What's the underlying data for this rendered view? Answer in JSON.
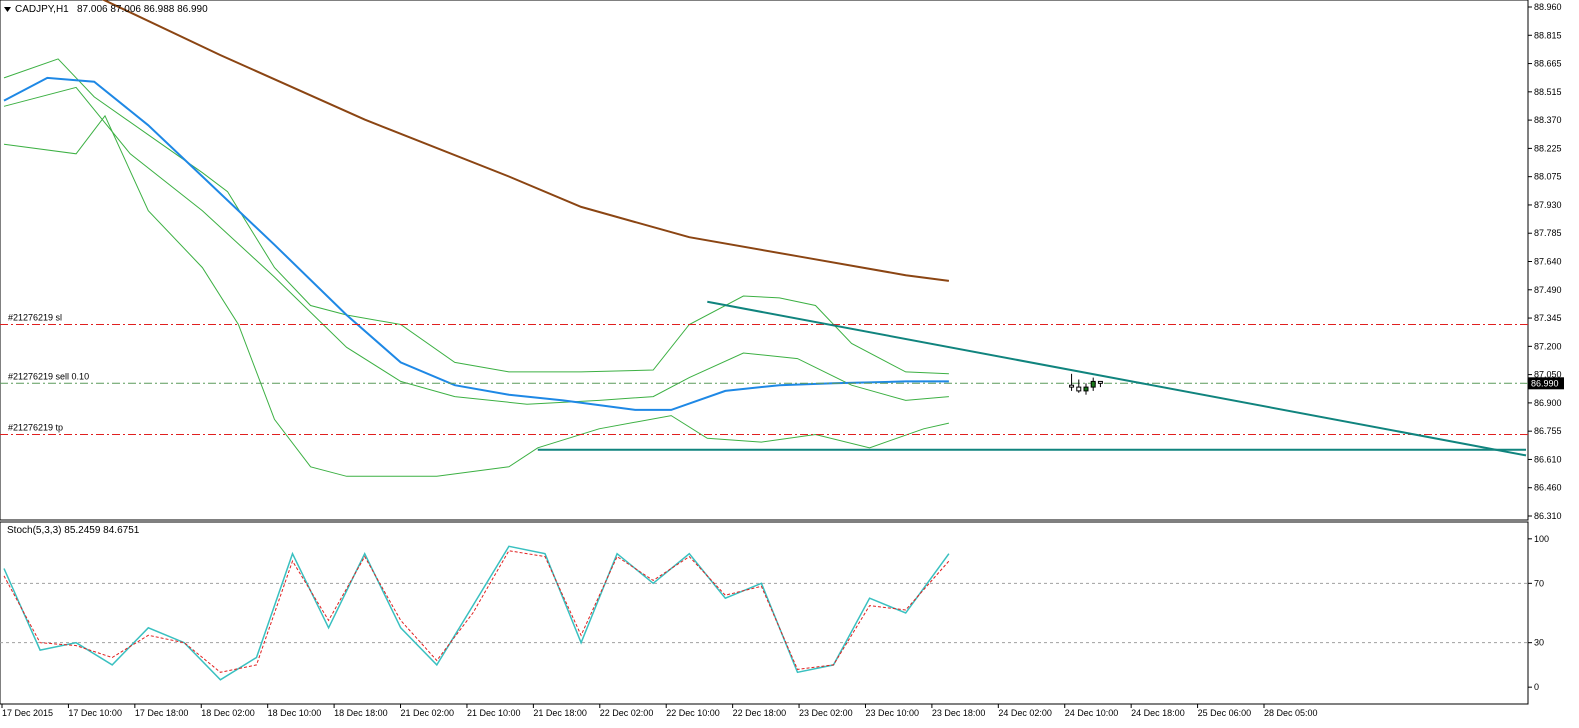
{
  "chart_data": {
    "type": "candlestick",
    "symbol_label": "CADJPY,H1",
    "ohlc_header": "87.006 87.006 86.988 86.990",
    "current_price_label": "86.990",
    "y_ticks": [
      "88.960",
      "88.815",
      "88.665",
      "88.515",
      "88.370",
      "88.225",
      "88.075",
      "87.930",
      "87.785",
      "87.640",
      "87.490",
      "87.345",
      "87.200",
      "87.050",
      "86.900",
      "86.755",
      "86.610",
      "86.460",
      "86.310"
    ],
    "x_ticks": [
      "17 Dec 2015",
      "17 Dec 10:00",
      "17 Dec 18:00",
      "18 Dec 02:00",
      "18 Dec 10:00",
      "18 Dec 18:00",
      "21 Dec 02:00",
      "21 Dec 10:00",
      "21 Dec 18:00",
      "22 Dec 02:00",
      "22 Dec 10:00",
      "22 Dec 18:00",
      "23 Dec 02:00",
      "23 Dec 10:00",
      "23 Dec 18:00",
      "24 Dec 02:00",
      "24 Dec 10:00",
      "24 Dec 18:00",
      "25 Dec 06:00",
      "28 Dec 05:00"
    ],
    "ylim": [
      86.28,
      89.0
    ],
    "levels": [
      {
        "label": "#21276219 sl",
        "price": 87.3,
        "color": "#e02020"
      },
      {
        "label": "#21276219 sell 0.10",
        "price": 86.99,
        "color": "#5a9a5a"
      },
      {
        "label": "#21276219 tp",
        "price": 86.72,
        "color": "#e02020"
      }
    ],
    "trendlines": [
      {
        "name": "descending-trendline",
        "from": [
          195,
          87.42
        ],
        "to": [
          422,
          86.61
        ],
        "color": "#10847e"
      },
      {
        "name": "support-line",
        "from": [
          148,
          86.64
        ],
        "to": [
          422,
          86.64
        ],
        "color": "#10847e"
      }
    ],
    "ma_slow": {
      "color": "#8b4513",
      "points": [
        [
          0,
          89.2
        ],
        [
          20,
          89.08
        ],
        [
          60,
          88.72
        ],
        [
          100,
          88.38
        ],
        [
          140,
          88.08
        ],
        [
          160,
          87.92
        ],
        [
          190,
          87.76
        ],
        [
          220,
          87.66
        ],
        [
          250,
          87.56
        ],
        [
          262,
          87.53
        ]
      ]
    },
    "ma_fast": {
      "color": "#1e88e5",
      "points": [
        [
          0,
          88.48
        ],
        [
          12,
          88.6
        ],
        [
          25,
          88.58
        ],
        [
          40,
          88.35
        ],
        [
          55,
          88.08
        ],
        [
          75,
          87.72
        ],
        [
          95,
          87.35
        ],
        [
          110,
          87.1
        ],
        [
          125,
          86.98
        ],
        [
          140,
          86.93
        ],
        [
          155,
          86.9
        ],
        [
          175,
          86.85
        ],
        [
          185,
          86.85
        ],
        [
          200,
          86.95
        ],
        [
          215,
          86.98
        ],
        [
          230,
          86.99
        ],
        [
          250,
          87.0
        ],
        [
          262,
          87.0
        ]
      ]
    },
    "bollinger": {
      "color": "#3cb043",
      "upper": [
        [
          0,
          88.6
        ],
        [
          15,
          88.7
        ],
        [
          25,
          88.5
        ],
        [
          40,
          88.3
        ],
        [
          55,
          88.1
        ],
        [
          62,
          88.0
        ],
        [
          75,
          87.6
        ],
        [
          85,
          87.4
        ],
        [
          95,
          87.35
        ],
        [
          110,
          87.3
        ],
        [
          125,
          87.1
        ],
        [
          140,
          87.05
        ],
        [
          160,
          87.05
        ],
        [
          180,
          87.06
        ],
        [
          190,
          87.3
        ],
        [
          205,
          87.45
        ],
        [
          215,
          87.44
        ],
        [
          225,
          87.4
        ],
        [
          235,
          87.2
        ],
        [
          250,
          87.05
        ],
        [
          262,
          87.04
        ]
      ],
      "middle": [
        [
          0,
          88.45
        ],
        [
          20,
          88.55
        ],
        [
          35,
          88.2
        ],
        [
          55,
          87.9
        ],
        [
          75,
          87.55
        ],
        [
          95,
          87.18
        ],
        [
          110,
          87.0
        ],
        [
          125,
          86.92
        ],
        [
          145,
          86.88
        ],
        [
          165,
          86.9
        ],
        [
          180,
          86.92
        ],
        [
          190,
          87.02
        ],
        [
          205,
          87.15
        ],
        [
          220,
          87.12
        ],
        [
          235,
          86.98
        ],
        [
          250,
          86.9
        ],
        [
          262,
          86.92
        ]
      ],
      "lower": [
        [
          0,
          88.25
        ],
        [
          20,
          88.2
        ],
        [
          28,
          88.4
        ],
        [
          40,
          87.9
        ],
        [
          55,
          87.6
        ],
        [
          65,
          87.3
        ],
        [
          75,
          86.8
        ],
        [
          85,
          86.55
        ],
        [
          95,
          86.5
        ],
        [
          110,
          86.5
        ],
        [
          120,
          86.5
        ],
        [
          140,
          86.55
        ],
        [
          148,
          86.65
        ],
        [
          165,
          86.75
        ],
        [
          185,
          86.82
        ],
        [
          195,
          86.7
        ],
        [
          210,
          86.68
        ],
        [
          225,
          86.72
        ],
        [
          240,
          86.65
        ],
        [
          255,
          86.75
        ],
        [
          262,
          86.78
        ]
      ]
    },
    "candles": [
      [
        86.98,
        87.04,
        86.95,
        86.97
      ],
      [
        86.97,
        87.01,
        86.94,
        86.95
      ],
      [
        86.95,
        86.99,
        86.93,
        86.97
      ],
      [
        86.97,
        87.02,
        86.95,
        87.0
      ],
      [
        87.0,
        87.0,
        86.97,
        86.99
      ]
    ],
    "stochastic": {
      "label": "Stoch(5,3,3) 85.2459 84.6751",
      "y_ticks": [
        "100",
        "70",
        "30",
        "0"
      ],
      "k_color": "#39c0c0",
      "d_color": "#e02020",
      "levels": [
        70,
        30
      ],
      "k": [
        [
          0,
          80
        ],
        [
          10,
          25
        ],
        [
          20,
          30
        ],
        [
          30,
          15
        ],
        [
          40,
          40
        ],
        [
          50,
          30
        ],
        [
          60,
          5
        ],
        [
          70,
          20
        ],
        [
          80,
          90
        ],
        [
          90,
          40
        ],
        [
          100,
          90
        ],
        [
          110,
          40
        ],
        [
          120,
          15
        ],
        [
          130,
          55
        ],
        [
          140,
          95
        ],
        [
          150,
          90
        ],
        [
          160,
          30
        ],
        [
          170,
          90
        ],
        [
          180,
          70
        ],
        [
          190,
          90
        ],
        [
          200,
          60
        ],
        [
          210,
          70
        ],
        [
          220,
          10
        ],
        [
          230,
          15
        ],
        [
          240,
          60
        ],
        [
          250,
          50
        ],
        [
          262,
          90
        ]
      ],
      "d": [
        [
          0,
          75
        ],
        [
          10,
          30
        ],
        [
          20,
          28
        ],
        [
          30,
          20
        ],
        [
          40,
          35
        ],
        [
          50,
          30
        ],
        [
          60,
          10
        ],
        [
          70,
          15
        ],
        [
          80,
          85
        ],
        [
          90,
          45
        ],
        [
          100,
          88
        ],
        [
          110,
          45
        ],
        [
          120,
          18
        ],
        [
          130,
          50
        ],
        [
          140,
          92
        ],
        [
          150,
          88
        ],
        [
          160,
          35
        ],
        [
          170,
          88
        ],
        [
          180,
          72
        ],
        [
          190,
          88
        ],
        [
          200,
          62
        ],
        [
          210,
          68
        ],
        [
          220,
          12
        ],
        [
          230,
          15
        ],
        [
          240,
          55
        ],
        [
          250,
          52
        ],
        [
          262,
          85
        ]
      ],
      "ylim": [
        -10,
        110
      ]
    }
  }
}
